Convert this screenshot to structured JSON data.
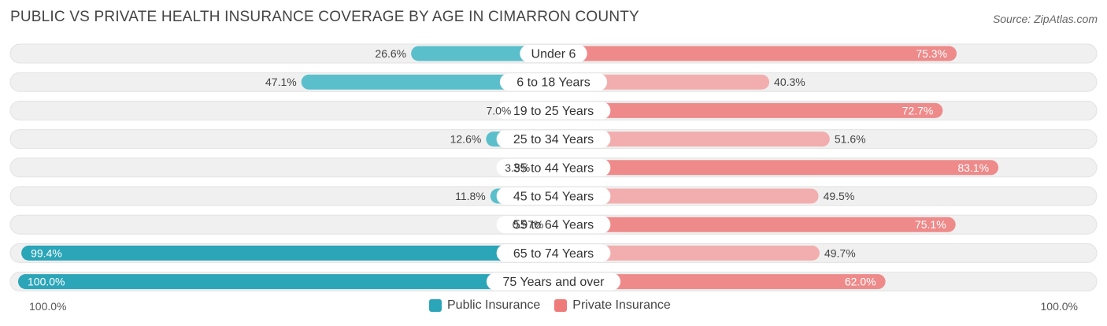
{
  "title": "PUBLIC VS PRIVATE HEALTH INSURANCE COVERAGE BY AGE IN CIMARRON COUNTY",
  "source": "Source: ZipAtlas.com",
  "axis": {
    "left_label": "100.0%",
    "right_label": "100.0%"
  },
  "legend": {
    "public_label": "Public Insurance",
    "private_label": "Private Insurance"
  },
  "colors": {
    "public": "#5bbfcb",
    "public_strong": "#2ba5b8",
    "private": "#ee8a8a",
    "private_light": "#f2aeae",
    "track": "#f0f0f0"
  },
  "chart_data": {
    "type": "bar",
    "orientation": "diverging-horizontal",
    "title": "PUBLIC VS PRIVATE HEALTH INSURANCE COVERAGE BY AGE IN CIMARRON COUNTY",
    "xlim": [
      0,
      100
    ],
    "categories": [
      "Under 6",
      "6 to 18 Years",
      "19 to 25 Years",
      "25 to 34 Years",
      "35 to 44 Years",
      "45 to 54 Years",
      "55 to 64 Years",
      "65 to 74 Years",
      "75 Years and over"
    ],
    "series": [
      {
        "name": "Public Insurance",
        "values": [
          26.6,
          47.1,
          7.0,
          12.6,
          3.5,
          11.8,
          0.97,
          99.4,
          100.0
        ],
        "labels": [
          "26.6%",
          "47.1%",
          "7.0%",
          "12.6%",
          "3.5%",
          "11.8%",
          "0.97%",
          "99.4%",
          "100.0%"
        ]
      },
      {
        "name": "Private Insurance",
        "values": [
          75.3,
          40.3,
          72.7,
          51.6,
          83.1,
          49.5,
          75.1,
          49.7,
          62.0
        ],
        "labels": [
          "75.3%",
          "40.3%",
          "72.7%",
          "51.6%",
          "83.1%",
          "49.5%",
          "75.1%",
          "49.7%",
          "62.0%"
        ]
      }
    ]
  }
}
